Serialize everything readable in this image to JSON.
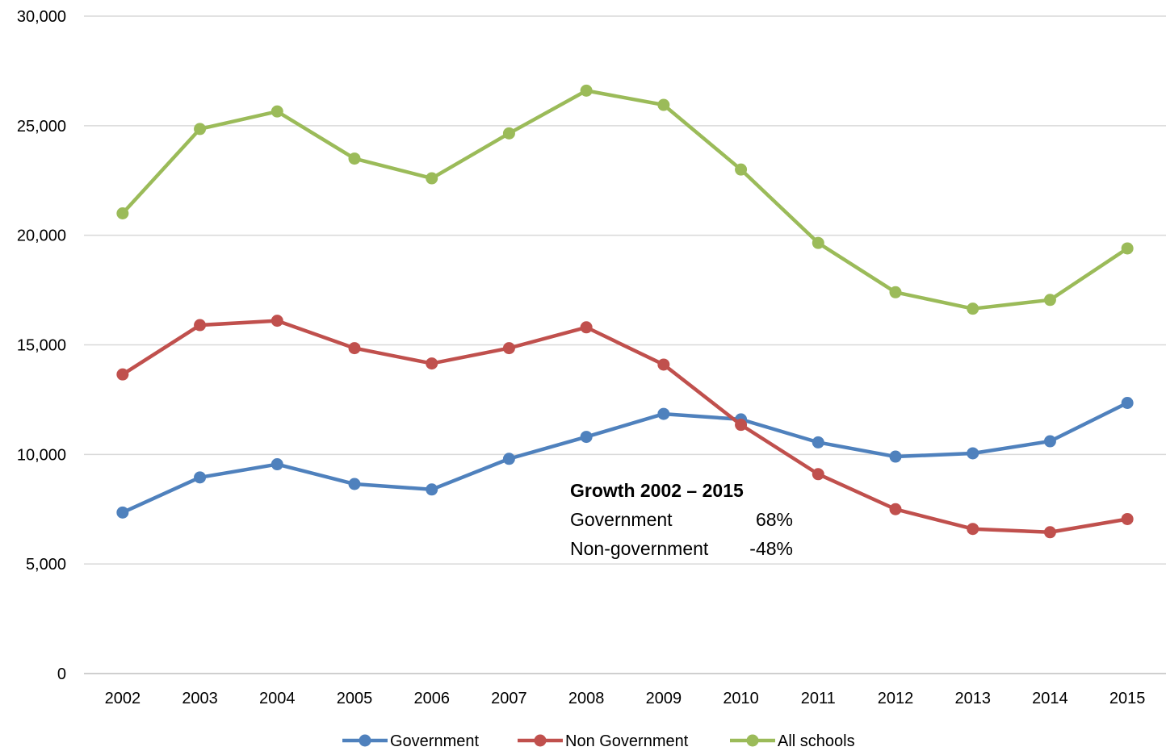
{
  "chart_data": {
    "type": "line",
    "title": "",
    "xlabel": "",
    "ylabel": "",
    "categories": [
      "2002",
      "2003",
      "2004",
      "2005",
      "2006",
      "2007",
      "2008",
      "2009",
      "2010",
      "2011",
      "2012",
      "2013",
      "2014",
      "2015"
    ],
    "ylim": [
      0,
      30000
    ],
    "yticks": [
      0,
      5000,
      10000,
      15000,
      20000,
      25000,
      30000
    ],
    "ytick_labels": [
      "0",
      "5,000",
      "10,000",
      "15,000",
      "20,000",
      "25,000",
      "30,000"
    ],
    "grid": "horizontal",
    "legend_position": "bottom",
    "series": [
      {
        "name": "Government",
        "color": "#4f81bd",
        "values": [
          7350,
          8950,
          9550,
          8650,
          8400,
          9800,
          10800,
          11850,
          11600,
          10550,
          9900,
          10050,
          10600,
          12350
        ]
      },
      {
        "name": "Non Government",
        "color": "#c0504d",
        "values": [
          13650,
          15900,
          16100,
          14850,
          14150,
          14850,
          15800,
          14100,
          11350,
          9100,
          7500,
          6600,
          6450,
          7050
        ]
      },
      {
        "name": "All schools",
        "color": "#9bbb59",
        "values": [
          21000,
          24850,
          25650,
          23500,
          22600,
          24650,
          26600,
          25950,
          23000,
          19650,
          17400,
          16650,
          17050,
          19400
        ]
      }
    ],
    "annotation": {
      "title": "Growth 2002 – 2015",
      "rows": [
        {
          "label": "Government",
          "value": "68%"
        },
        {
          "label": "Non-government",
          "value": "-48%"
        }
      ]
    }
  }
}
